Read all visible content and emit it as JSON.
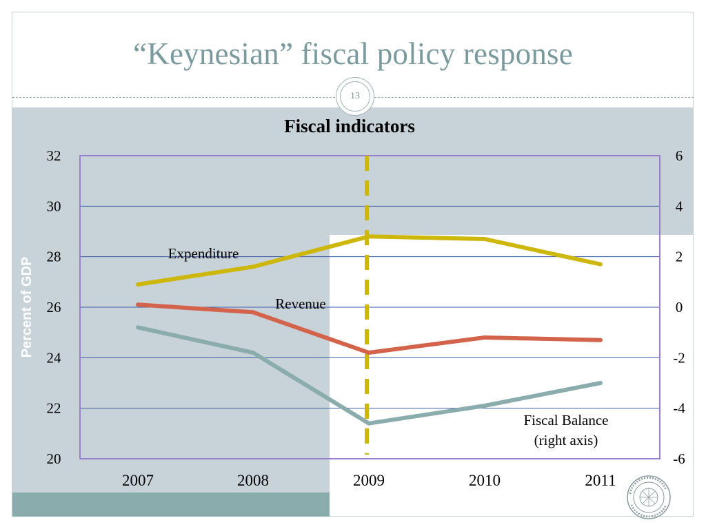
{
  "slide": {
    "title": "“Keynesian” fiscal policy response",
    "page_number": "13"
  },
  "colors": {
    "title": "#7b9a9d",
    "band": "#c8d3d9",
    "band_dark": "#8aacac",
    "plot_border": "#9b7fce",
    "gridline": "#3a5aa8",
    "expenditure": "#cdb70a",
    "revenue": "#d3634a",
    "fiscal_balance": "#8aacac",
    "divider": "#cdb70a"
  },
  "seal_icon": "imf-seal-icon",
  "chart_data": {
    "type": "line",
    "title": "Fiscal  indicators",
    "ylabel": "Percent of GDP",
    "categories": [
      "2007",
      "2008",
      "2009",
      "2010",
      "2011"
    ],
    "ylim": [
      20,
      32
    ],
    "yticks": [
      "20",
      "22",
      "24",
      "26",
      "28",
      "30",
      "32"
    ],
    "y2lim": [
      -6,
      6
    ],
    "y2ticks": [
      "-6",
      "-4",
      "-2",
      "0",
      "2",
      "4",
      "6"
    ],
    "grid": true,
    "vertical_marker": {
      "category": "2009",
      "style": "dashed"
    },
    "series": [
      {
        "name": "Expenditure",
        "axis": "left",
        "values": [
          26.9,
          27.6,
          28.8,
          28.7,
          27.7
        ]
      },
      {
        "name": "Revenue",
        "axis": "left",
        "values": [
          26.1,
          25.8,
          24.2,
          24.8,
          24.7
        ]
      },
      {
        "name": "Fiscal Balance",
        "axis": "right",
        "values": [
          -0.8,
          -1.8,
          -4.6,
          -3.9,
          -3.0
        ]
      }
    ],
    "annotations": [
      {
        "text": "Expenditure",
        "series": "Expenditure"
      },
      {
        "text": "Revenue",
        "series": "Revenue"
      },
      {
        "text": "Fiscal Balance",
        "series": "Fiscal Balance"
      },
      {
        "text": "(right axis)",
        "series": "Fiscal Balance"
      }
    ]
  }
}
